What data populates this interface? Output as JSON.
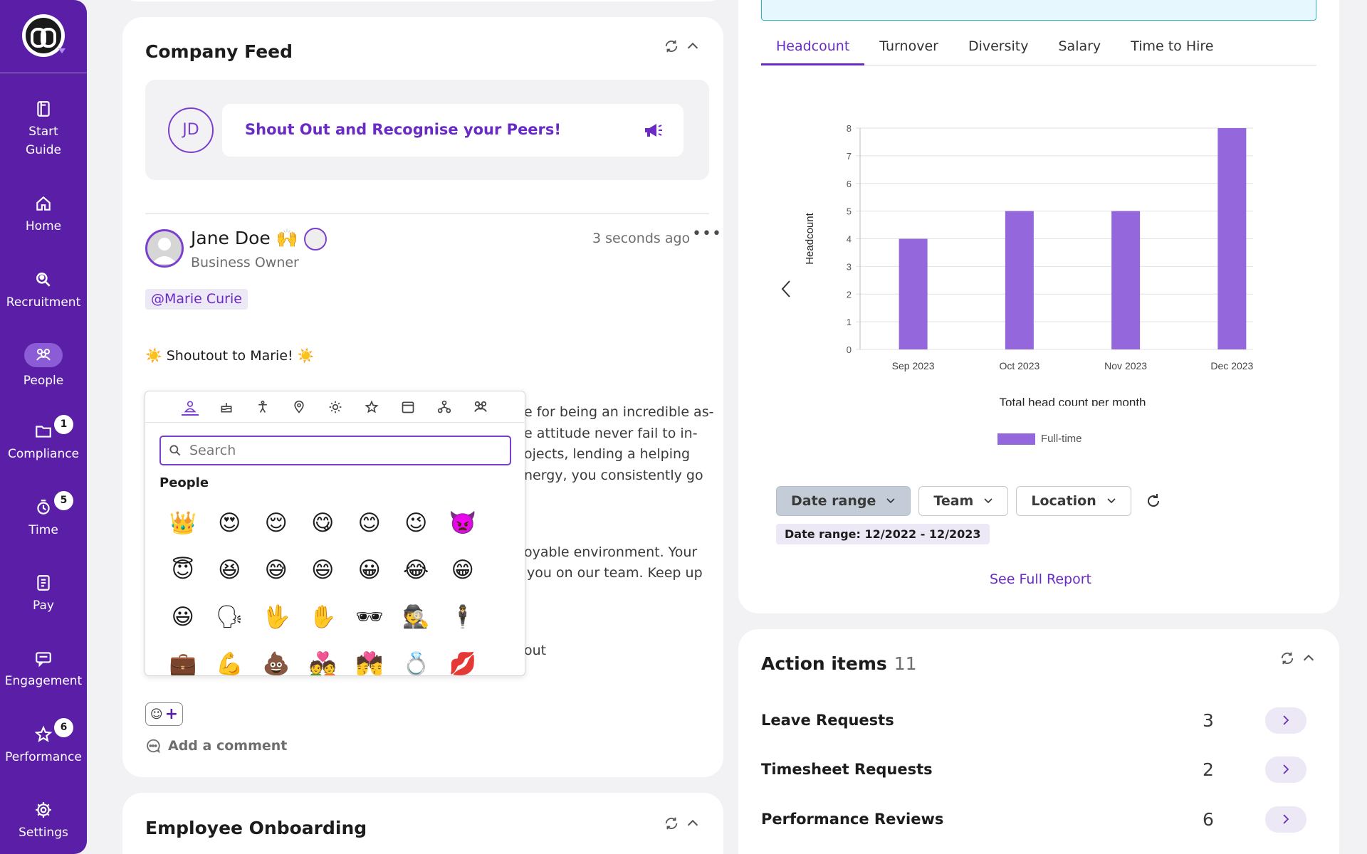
{
  "sidebar": {
    "items": [
      {
        "label": "Start\nGuide",
        "icon": "book-icon"
      },
      {
        "label": "Home",
        "icon": "home-icon"
      },
      {
        "label": "Recruitment",
        "icon": "search-person-icon"
      },
      {
        "label": "People",
        "icon": "people-icon"
      },
      {
        "label": "Compliance",
        "icon": "folder-icon",
        "badge": "1"
      },
      {
        "label": "Time",
        "icon": "clock-icon",
        "badge": "5"
      },
      {
        "label": "Pay",
        "icon": "pay-icon"
      },
      {
        "label": "Engagement",
        "icon": "chat-icon"
      },
      {
        "label": "Performance",
        "icon": "star-icon",
        "badge": "6"
      },
      {
        "label": "Settings",
        "icon": "gear-icon"
      }
    ]
  },
  "feed": {
    "title": "Company Feed",
    "shoutout": {
      "initials": "JD",
      "prompt": "Shout Out and Recognise your Peers!"
    },
    "post": {
      "author": "Jane Doe",
      "role": "Business Owner",
      "time": "3 seconds ago",
      "mention": "@Marie Curie",
      "headline": "Shoutout to Marie!",
      "visible_text": [
        "e for being an incredible as-",
        "e attitude never fail to in-",
        "ojects, lending a helping",
        "nergy, you consistently go",
        "oyable environment. Your",
        "you on our team. Keep up",
        "out"
      ]
    },
    "add_comment": "Add a comment"
  },
  "emoji_picker": {
    "categories": [
      "person-icon",
      "cake-icon",
      "figure-icon",
      "location-icon",
      "sun-icon",
      "star-icon",
      "box-icon",
      "nodes-icon",
      "group-icon"
    ],
    "search_placeholder": "Search",
    "section_title": "People",
    "emojis": [
      "👑",
      "😍",
      "😌",
      "😋",
      "😊",
      "😉",
      "👿",
      "😇",
      "😆",
      "😅",
      "😄",
      "😀",
      "😂",
      "😁",
      "😃",
      "🗣",
      "🖖",
      "✋",
      "🕶",
      "🕵",
      "🕴",
      "💼",
      "💪",
      "💩",
      "💑",
      "💏",
      "💍",
      "💋"
    ]
  },
  "onboarding": {
    "title": "Employee Onboarding"
  },
  "analytics": {
    "tabs": [
      "Headcount",
      "Turnover",
      "Diversity",
      "Salary",
      "Time to Hire"
    ],
    "active_tab": 0,
    "filters": [
      {
        "label": "Date range"
      },
      {
        "label": "Team"
      },
      {
        "label": "Location"
      }
    ],
    "range_chip": "Date range: 12/2022 - 12/2023",
    "see_full_report": "See Full Report"
  },
  "chart_data": {
    "type": "bar",
    "categories": [
      "Sep 2023",
      "Oct 2023",
      "Nov 2023",
      "Dec 2023"
    ],
    "series": [
      {
        "name": "Full-time",
        "values": [
          4,
          5,
          5,
          8
        ],
        "color": "#9467dc"
      }
    ],
    "title": "",
    "xlabel": "Total head count per month",
    "ylabel": "Headcount",
    "ylim": [
      0,
      8
    ],
    "yticks": [
      0,
      1,
      2,
      3,
      4,
      5,
      6,
      7,
      8
    ],
    "grid": true,
    "legend": "bottom"
  },
  "actions": {
    "title": "Action items",
    "count": "11",
    "rows": [
      {
        "label": "Leave Requests",
        "count": "3"
      },
      {
        "label": "Timesheet Requests",
        "count": "2"
      },
      {
        "label": "Performance Reviews",
        "count": "6"
      }
    ]
  },
  "colors": {
    "brand": "#5a1fa6",
    "accent": "#6a2bc4",
    "bar": "#9467dc"
  }
}
